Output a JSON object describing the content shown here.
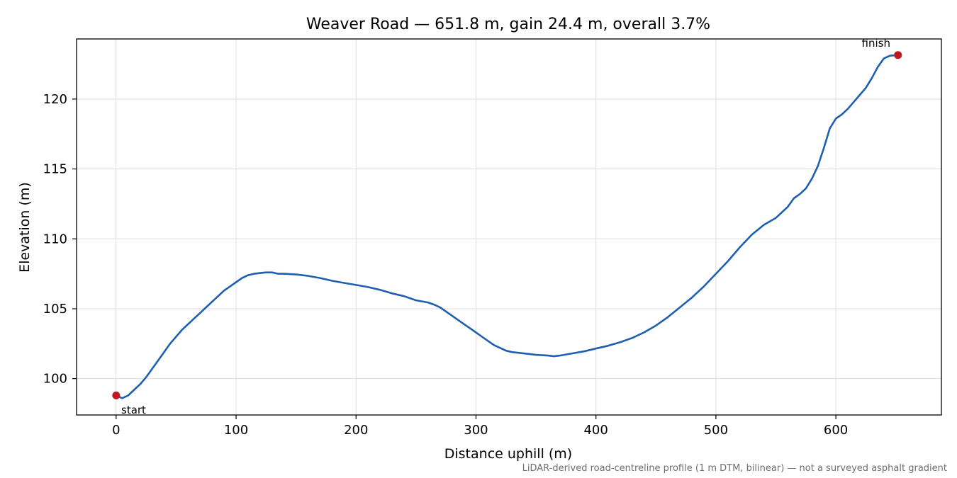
{
  "chart_data": {
    "type": "line",
    "title": "Weaver Road — 651.8 m, gain 24.4 m, overall 3.7%",
    "xlabel": "Distance uphill (m)",
    "ylabel": "Elevation (m)",
    "xlim": [
      -33,
      688
    ],
    "ylim": [
      97.4,
      124.3
    ],
    "xticks": [
      0,
      100,
      200,
      300,
      400,
      500,
      600
    ],
    "yticks": [
      100,
      105,
      110,
      115,
      120
    ],
    "grid": true,
    "line_color": "#1f5fb0",
    "marker_color": "#c0181c",
    "series": [
      {
        "x": [
          0,
          5,
          10,
          15,
          20,
          25,
          30,
          35,
          40,
          45,
          50,
          55,
          60,
          65,
          70,
          75,
          80,
          85,
          90,
          95,
          100,
          105,
          110,
          115,
          120,
          125,
          130,
          135,
          140,
          150,
          160,
          170,
          180,
          190,
          200,
          210,
          220,
          230,
          240,
          250,
          260,
          265,
          270,
          275,
          280,
          285,
          290,
          295,
          300,
          305,
          310,
          315,
          320,
          325,
          330,
          340,
          350,
          360,
          365,
          370,
          380,
          390,
          400,
          410,
          420,
          430,
          440,
          450,
          460,
          470,
          480,
          490,
          500,
          510,
          520,
          530,
          540,
          550,
          555,
          560,
          565,
          570,
          575,
          580,
          585,
          590,
          595,
          600,
          605,
          610,
          615,
          620,
          625,
          630,
          635,
          640,
          645,
          651.8
        ],
        "y": [
          98.8,
          98.6,
          98.8,
          99.2,
          99.6,
          100.1,
          100.7,
          101.3,
          101.9,
          102.5,
          103.0,
          103.5,
          103.9,
          104.3,
          104.7,
          105.1,
          105.5,
          105.9,
          106.3,
          106.6,
          106.9,
          107.2,
          107.4,
          107.5,
          107.55,
          107.6,
          107.6,
          107.5,
          107.5,
          107.45,
          107.35,
          107.2,
          107.0,
          106.85,
          106.7,
          106.55,
          106.35,
          106.1,
          105.9,
          105.6,
          105.45,
          105.3,
          105.1,
          104.8,
          104.5,
          104.2,
          103.9,
          103.6,
          103.3,
          103.0,
          102.7,
          102.4,
          102.2,
          102.0,
          101.9,
          101.8,
          101.7,
          101.65,
          101.6,
          101.65,
          101.8,
          101.95,
          102.15,
          102.35,
          102.6,
          102.9,
          103.3,
          103.8,
          104.4,
          105.1,
          105.8,
          106.6,
          107.5,
          108.4,
          109.4,
          110.3,
          111.0,
          111.5,
          111.9,
          112.3,
          112.9,
          113.2,
          113.6,
          114.3,
          115.2,
          116.5,
          117.9,
          118.6,
          118.9,
          119.3,
          119.8,
          120.3,
          120.8,
          121.5,
          122.3,
          122.9,
          123.1,
          123.15
        ]
      }
    ],
    "annotations": [
      {
        "text": "start",
        "x": 0,
        "y": 98.8
      },
      {
        "text": "finish",
        "x": 651.8,
        "y": 123.15
      }
    ],
    "footnote": "LiDAR-derived road-centreline profile (1 m DTM, bilinear) — not a surveyed asphalt gradient"
  }
}
